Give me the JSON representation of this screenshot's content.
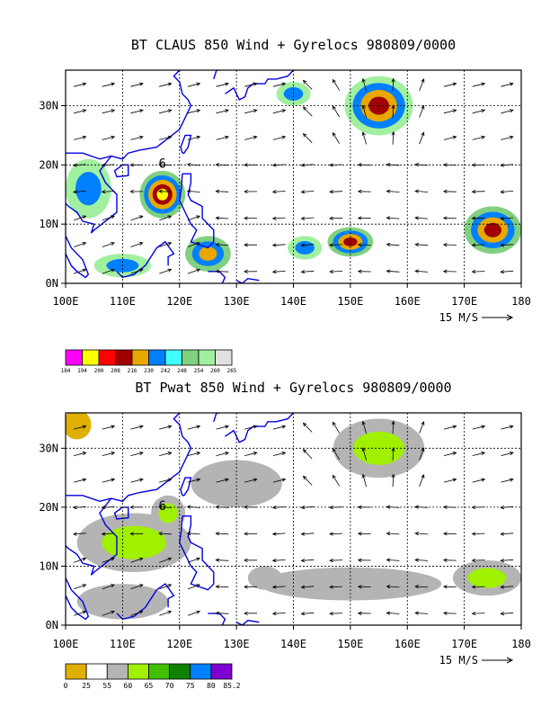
{
  "chart_data": [
    {
      "type": "heatmap",
      "title": "BT CLAUS 850 Wind + Gyrelocs 980809/0000",
      "x_ticks": [
        "100E",
        "110E",
        "120E",
        "130E",
        "140E",
        "150E",
        "160E",
        "170E",
        "180"
      ],
      "y_ticks": [
        "0N",
        "10N",
        "20N",
        "30N"
      ],
      "xlim": [
        100,
        180
      ],
      "ylim": [
        0,
        36
      ],
      "grid": true,
      "vector_reference": "15 M/S",
      "gyre_marker": "6",
      "gyre_location": [
        117,
        19.5
      ],
      "colorbar": {
        "labels": [
          "184",
          "194",
          "200",
          "208",
          "216",
          "230",
          "242",
          "248",
          "254",
          "260",
          "265"
        ],
        "colors": [
          "#ff00ff",
          "#ffff00",
          "#ff0000",
          "#a00000",
          "#e8a800",
          "#0080ff",
          "#40ffff",
          "#80d080",
          "#a0f0a0",
          "#e0e0e0"
        ]
      }
    },
    {
      "type": "heatmap",
      "title": "BT Pwat 850 Wind + Gyrelocs 980809/0000",
      "x_ticks": [
        "100E",
        "110E",
        "120E",
        "130E",
        "140E",
        "150E",
        "160E",
        "170E",
        "180"
      ],
      "y_ticks": [
        "0N",
        "10N",
        "20N",
        "30N"
      ],
      "xlim": [
        100,
        180
      ],
      "ylim": [
        0,
        36
      ],
      "grid": true,
      "vector_reference": "15 M/S",
      "gyre_marker": "6",
      "gyre_location": [
        117,
        19.5
      ],
      "colorbar": {
        "labels": [
          "0",
          "25",
          "55",
          "60",
          "65",
          "70",
          "75",
          "80",
          "85.2"
        ],
        "colors": [
          "#e0b000",
          "#ffffff",
          "#b4b4b4",
          "#a0f000",
          "#40c000",
          "#108000",
          "#0080ff",
          "#8000d0"
        ]
      }
    }
  ]
}
